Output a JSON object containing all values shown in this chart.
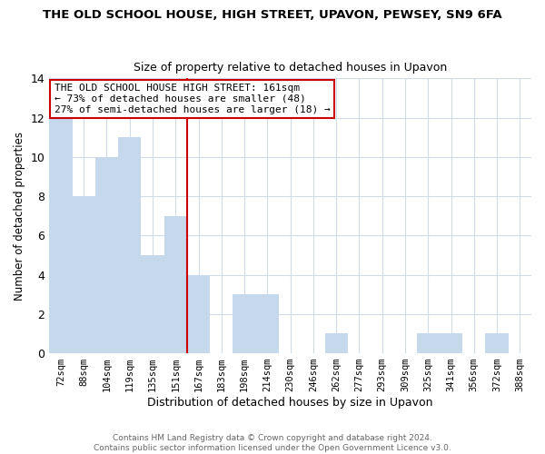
{
  "title": "THE OLD SCHOOL HOUSE, HIGH STREET, UPAVON, PEWSEY, SN9 6FA",
  "subtitle": "Size of property relative to detached houses in Upavon",
  "xlabel": "Distribution of detached houses by size in Upavon",
  "ylabel": "Number of detached properties",
  "bar_labels": [
    "72sqm",
    "88sqm",
    "104sqm",
    "119sqm",
    "135sqm",
    "151sqm",
    "167sqm",
    "183sqm",
    "198sqm",
    "214sqm",
    "230sqm",
    "246sqm",
    "262sqm",
    "277sqm",
    "293sqm",
    "309sqm",
    "325sqm",
    "341sqm",
    "356sqm",
    "372sqm",
    "388sqm"
  ],
  "bar_values": [
    12,
    8,
    10,
    11,
    5,
    7,
    4,
    0,
    3,
    3,
    0,
    0,
    1,
    0,
    0,
    0,
    1,
    1,
    0,
    1,
    0
  ],
  "bar_color": "#c5d8ec",
  "vline_index": 6,
  "vline_color": "#cc0000",
  "annotation_title": "THE OLD SCHOOL HOUSE HIGH STREET: 161sqm",
  "annotation_line1": "← 73% of detached houses are smaller (48)",
  "annotation_line2": "27% of semi-detached houses are larger (18) →",
  "annotation_box_color": "#ffffff",
  "annotation_box_edge": "#cc0000",
  "ylim": [
    0,
    14
  ],
  "yticks": [
    0,
    2,
    4,
    6,
    8,
    10,
    12,
    14
  ],
  "footer_line1": "Contains HM Land Registry data © Crown copyright and database right 2024.",
  "footer_line2": "Contains public sector information licensed under the Open Government Licence v3.0.",
  "background_color": "#ffffff",
  "grid_color": "#d0dce8",
  "figsize": [
    6.0,
    5.0
  ],
  "dpi": 100
}
